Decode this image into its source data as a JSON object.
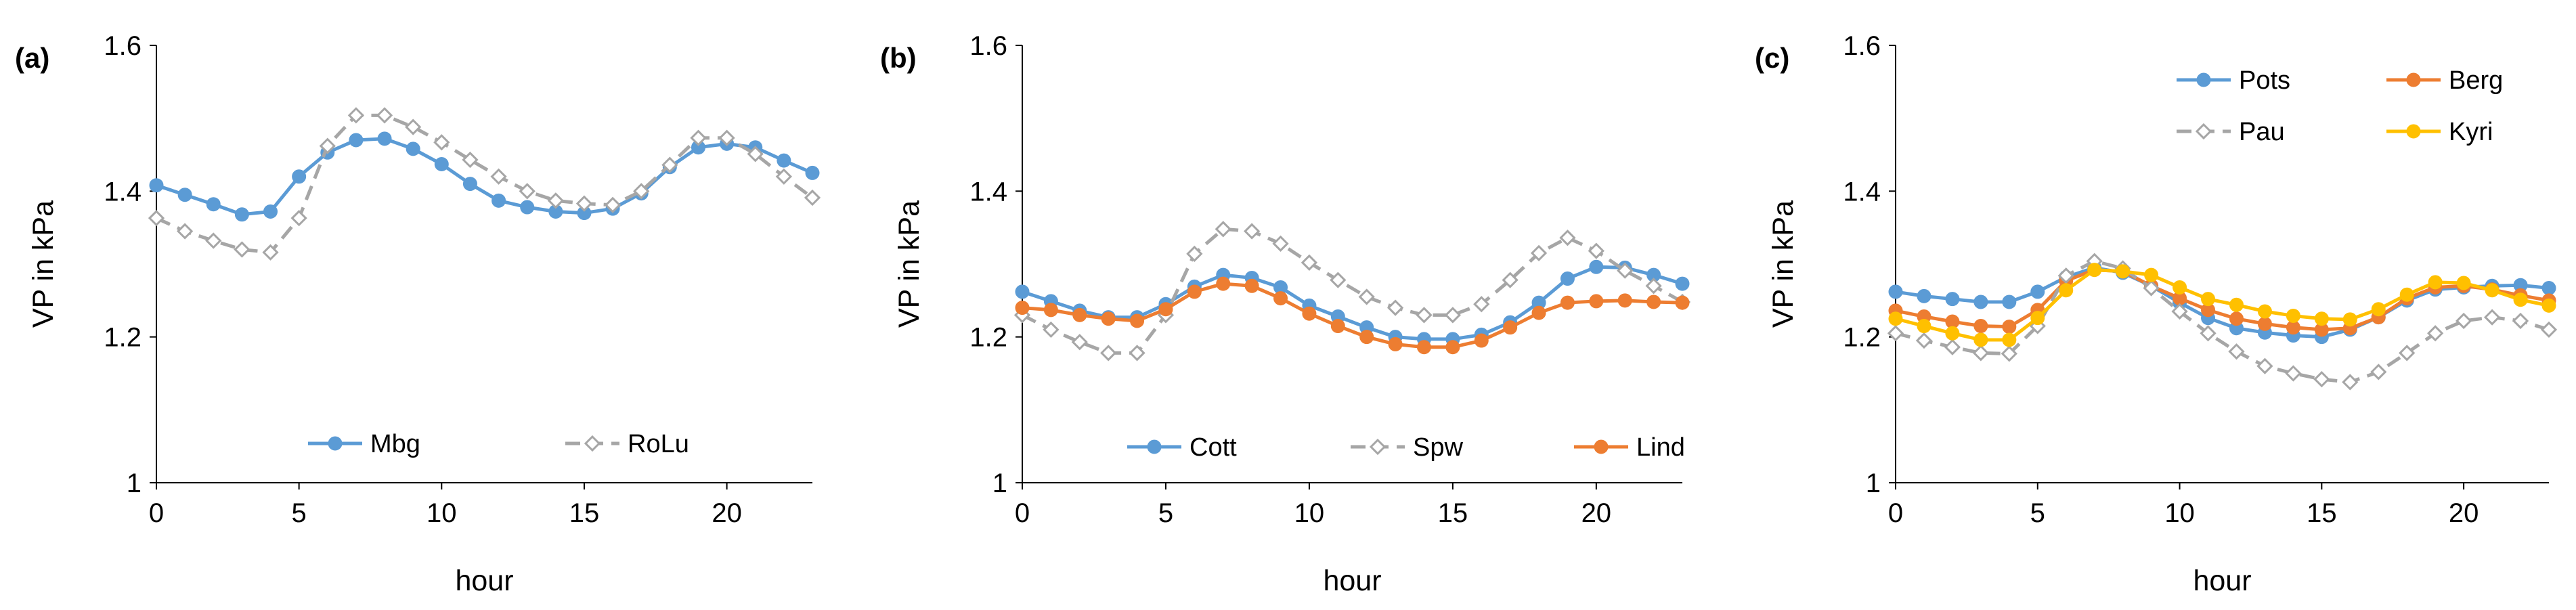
{
  "series_styles": {
    "Mbg": {
      "color": "#5b9bd5",
      "dash": false,
      "marker": "circle"
    },
    "RoLu": {
      "color": "#a6a6a6",
      "dash": true,
      "marker": "diamond"
    },
    "Cott": {
      "color": "#5b9bd5",
      "dash": false,
      "marker": "circle"
    },
    "Spw": {
      "color": "#a6a6a6",
      "dash": true,
      "marker": "diamond"
    },
    "Lind": {
      "color": "#ed7d31",
      "dash": false,
      "marker": "circle"
    },
    "Pots": {
      "color": "#5b9bd5",
      "dash": false,
      "marker": "circle"
    },
    "Berg": {
      "color": "#ed7d31",
      "dash": false,
      "marker": "circle"
    },
    "Pau": {
      "color": "#a6a6a6",
      "dash": true,
      "marker": "diamond"
    },
    "Kyri": {
      "color": "#ffc000",
      "dash": false,
      "marker": "circle"
    }
  },
  "chart_data": [
    {
      "type": "line",
      "panel_label": "(a)",
      "title": "",
      "xlabel": "hour",
      "ylabel": "VP in kPa",
      "xlim": [
        0,
        23
      ],
      "ylim": [
        1,
        1.6
      ],
      "xticks": [
        0,
        5,
        10,
        15,
        20
      ],
      "xtick_labels": [
        "0",
        "5",
        "10",
        "15",
        "20"
      ],
      "yticks": [
        1,
        1.2,
        1.4,
        1.6
      ],
      "ytick_labels": [
        "1",
        "1.2",
        "1.4",
        "1.6"
      ],
      "legend_position": "bottom-center",
      "x": [
        0,
        1,
        2,
        3,
        4,
        5,
        6,
        7,
        8,
        9,
        10,
        11,
        12,
        13,
        14,
        15,
        16,
        17,
        18,
        19,
        20,
        21,
        22,
        23
      ],
      "series": [
        {
          "name": "Mbg",
          "values": [
            1.408,
            1.395,
            1.382,
            1.368,
            1.372,
            1.42,
            1.453,
            1.47,
            1.472,
            1.458,
            1.437,
            1.41,
            1.387,
            1.378,
            1.372,
            1.37,
            1.376,
            1.397,
            1.433,
            1.46,
            1.465,
            1.46,
            1.442,
            1.425
          ]
        },
        {
          "name": "RoLu",
          "values": [
            1.363,
            1.345,
            1.332,
            1.32,
            1.316,
            1.363,
            1.462,
            1.504,
            1.504,
            1.488,
            1.467,
            1.443,
            1.42,
            1.4,
            1.387,
            1.383,
            1.381,
            1.4,
            1.436,
            1.473,
            1.473,
            1.451,
            1.42,
            1.391
          ]
        }
      ]
    },
    {
      "type": "line",
      "panel_label": "(b)",
      "title": "",
      "xlabel": "hour",
      "ylabel": "VP in kPa",
      "xlim": [
        0,
        23
      ],
      "ylim": [
        1,
        1.6
      ],
      "xticks": [
        0,
        5,
        10,
        15,
        20
      ],
      "xtick_labels": [
        "0",
        "5",
        "10",
        "15",
        "20"
      ],
      "yticks": [
        1,
        1.2,
        1.4,
        1.6
      ],
      "ytick_labels": [
        "1",
        "1.2",
        "1.4",
        "1.6"
      ],
      "legend_position": "bottom-center",
      "x": [
        0,
        1,
        2,
        3,
        4,
        5,
        6,
        7,
        8,
        9,
        10,
        11,
        12,
        13,
        14,
        15,
        16,
        17,
        18,
        19,
        20,
        21,
        22,
        23
      ],
      "series": [
        {
          "name": "Cott",
          "values": [
            1.262,
            1.249,
            1.236,
            1.227,
            1.227,
            1.245,
            1.269,
            1.285,
            1.281,
            1.268,
            1.243,
            1.228,
            1.213,
            1.2,
            1.197,
            1.197,
            1.203,
            1.22,
            1.247,
            1.28,
            1.296,
            1.295,
            1.285,
            1.273
          ]
        },
        {
          "name": "Spw",
          "values": [
            1.23,
            1.21,
            1.193,
            1.178,
            1.178,
            1.23,
            1.314,
            1.348,
            1.345,
            1.328,
            1.302,
            1.278,
            1.255,
            1.24,
            1.23,
            1.23,
            1.245,
            1.278,
            1.315,
            1.336,
            1.318,
            1.291,
            1.27,
            1.248
          ]
        },
        {
          "name": "Lind",
          "values": [
            1.24,
            1.237,
            1.23,
            1.225,
            1.222,
            1.238,
            1.262,
            1.273,
            1.27,
            1.253,
            1.232,
            1.215,
            1.2,
            1.19,
            1.186,
            1.186,
            1.195,
            1.213,
            1.233,
            1.247,
            1.249,
            1.25,
            1.248,
            1.247
          ]
        }
      ]
    },
    {
      "type": "line",
      "panel_label": "(c)",
      "title": "",
      "xlabel": "hour",
      "ylabel": "VP in kPa",
      "xlim": [
        0,
        23
      ],
      "ylim": [
        1,
        1.6
      ],
      "xticks": [
        0,
        5,
        10,
        15,
        20
      ],
      "xtick_labels": [
        "0",
        "5",
        "10",
        "15",
        "20"
      ],
      "yticks": [
        1,
        1.2,
        1.4,
        1.6
      ],
      "ytick_labels": [
        "1",
        "1.2",
        "1.4",
        "1.6"
      ],
      "legend_position": "top-right",
      "x": [
        0,
        1,
        2,
        3,
        4,
        5,
        6,
        7,
        8,
        9,
        10,
        11,
        12,
        13,
        14,
        15,
        16,
        17,
        18,
        19,
        20,
        21,
        22,
        23
      ],
      "series": [
        {
          "name": "Pots",
          "values": [
            1.262,
            1.256,
            1.252,
            1.248,
            1.248,
            1.262,
            1.282,
            1.295,
            1.288,
            1.27,
            1.247,
            1.226,
            1.212,
            1.206,
            1.202,
            1.2,
            1.21,
            1.227,
            1.25,
            1.265,
            1.268,
            1.27,
            1.271,
            1.267
          ]
        },
        {
          "name": "Berg",
          "values": [
            1.236,
            1.228,
            1.221,
            1.215,
            1.214,
            1.237,
            1.277,
            1.292,
            1.29,
            1.27,
            1.253,
            1.237,
            1.225,
            1.218,
            1.213,
            1.21,
            1.212,
            1.227,
            1.253,
            1.268,
            1.27,
            1.265,
            1.257,
            1.25
          ]
        },
        {
          "name": "Pau",
          "values": [
            1.205,
            1.195,
            1.186,
            1.178,
            1.177,
            1.215,
            1.284,
            1.304,
            1.294,
            1.267,
            1.235,
            1.205,
            1.18,
            1.16,
            1.15,
            1.142,
            1.138,
            1.152,
            1.178,
            1.205,
            1.222,
            1.227,
            1.222,
            1.21
          ]
        },
        {
          "name": "Kyri",
          "values": [
            1.225,
            1.215,
            1.205,
            1.196,
            1.196,
            1.226,
            1.264,
            1.292,
            1.29,
            1.285,
            1.268,
            1.252,
            1.244,
            1.235,
            1.229,
            1.225,
            1.224,
            1.238,
            1.258,
            1.275,
            1.274,
            1.264,
            1.251,
            1.243
          ]
        }
      ]
    }
  ]
}
